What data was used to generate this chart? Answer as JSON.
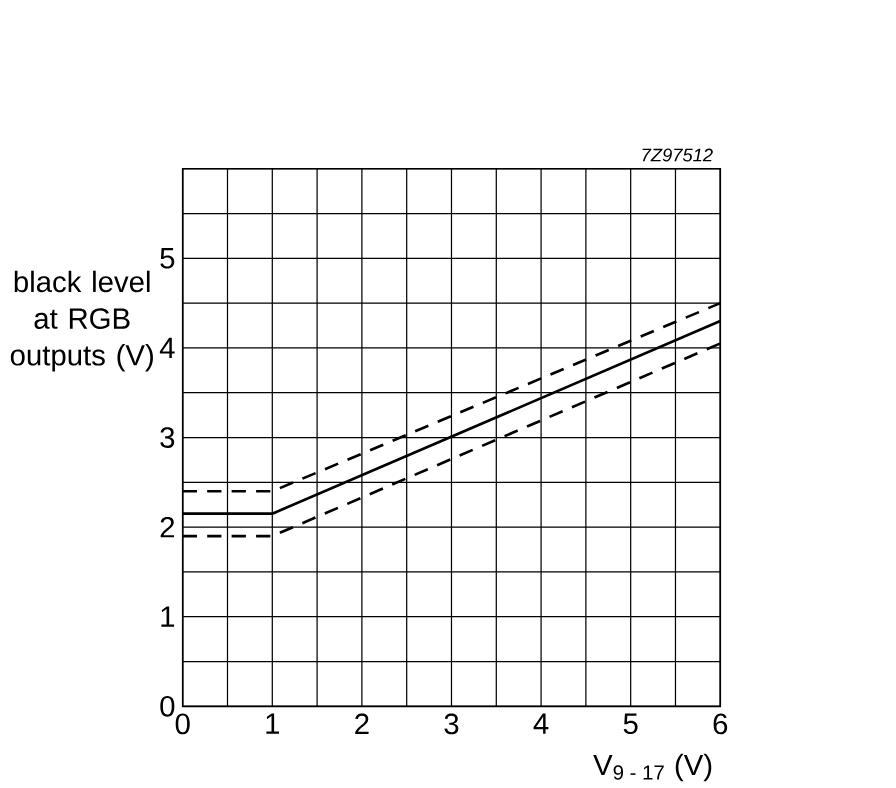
{
  "chart_data": {
    "type": "line",
    "xlabel": "V$_{9 - 17}$ (V)",
    "ylabel": "black level at RGB outputs (V)",
    "annotations": [
      "7Z97512"
    ],
    "x": [
      0,
      1,
      6
    ],
    "series": [
      {
        "color": "#000000",
        "line_style": "dashed",
        "values": [
          2.4,
          2.4,
          4.5
        ]
      },
      {
        "color": "#000000",
        "line_style": "solid",
        "values": [
          2.15,
          2.15,
          4.3
        ]
      },
      {
        "color": "#000000",
        "line_style": "dashed",
        "values": [
          1.9,
          1.9,
          4.05
        ]
      }
    ],
    "xlim": [
      0,
      6
    ],
    "ylim": [
      0,
      6
    ],
    "xticks": [
      0,
      {
        "value": 0.5,
        "label": null
      },
      1,
      {
        "value": 1.5,
        "label": null
      },
      2,
      {
        "value": 2.5,
        "label": null
      },
      3,
      {
        "value": 3.5,
        "label": null
      },
      4,
      {
        "value": 4.5,
        "label": null
      },
      5,
      {
        "value": 5.5,
        "label": null
      },
      6
    ],
    "yticks": [
      0,
      {
        "value": 0.5,
        "label": null
      },
      1,
      {
        "value": 1.5,
        "label": null
      },
      2,
      {
        "value": 2.5,
        "label": null
      },
      3,
      {
        "value": 3.5,
        "label": null
      },
      4,
      {
        "value": 4.5,
        "label": null
      },
      5,
      {
        "value": 5.5,
        "label": null
      },
      {
        "value": 6,
        "label": null
      }
    ],
    "grid": true
  }
}
